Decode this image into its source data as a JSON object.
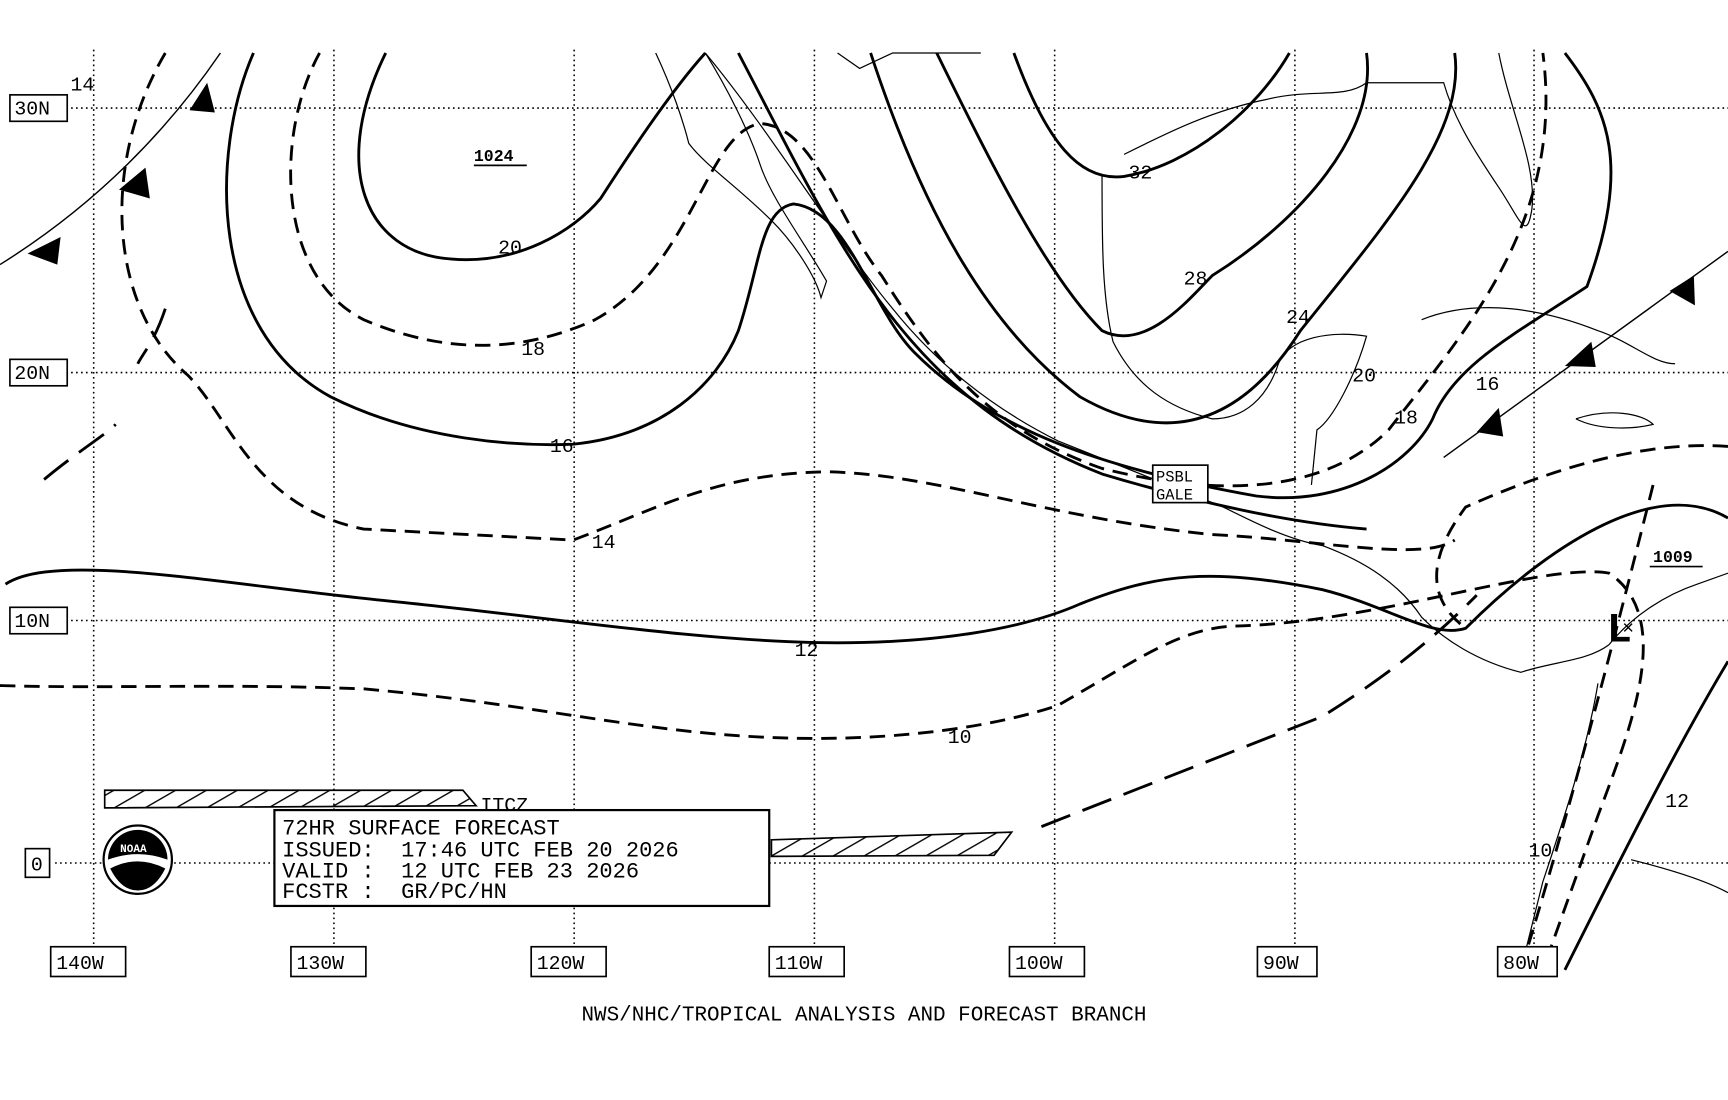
{
  "map": {
    "lat_labels": [
      "30N",
      "20N",
      "10N",
      "0"
    ],
    "lon_labels": [
      "140W",
      "130W",
      "120W",
      "110W",
      "100W",
      "90W",
      "80W"
    ],
    "isobar_labels": [
      "14",
      "20",
      "18",
      "16",
      "14",
      "12",
      "10",
      "32",
      "28",
      "24",
      "20",
      "18",
      "16",
      "12",
      "10"
    ],
    "pressure_centers": [
      "1024",
      "1009",
      "L"
    ],
    "itcz": "ITCZ",
    "gale": [
      "PSBL",
      "GALE"
    ],
    "logo": "NOAA"
  },
  "forecast_box": {
    "lines": [
      "72HR SURFACE FORECAST",
      "ISSUED:  17:46 UTC FEB 20 2026",
      "VALID :  12 UTC FEB 23 2026",
      "FCSTR :  GR/PC/HN"
    ]
  },
  "footer": "NWS/NHC/TROPICAL ANALYSIS AND FORECAST BRANCH"
}
